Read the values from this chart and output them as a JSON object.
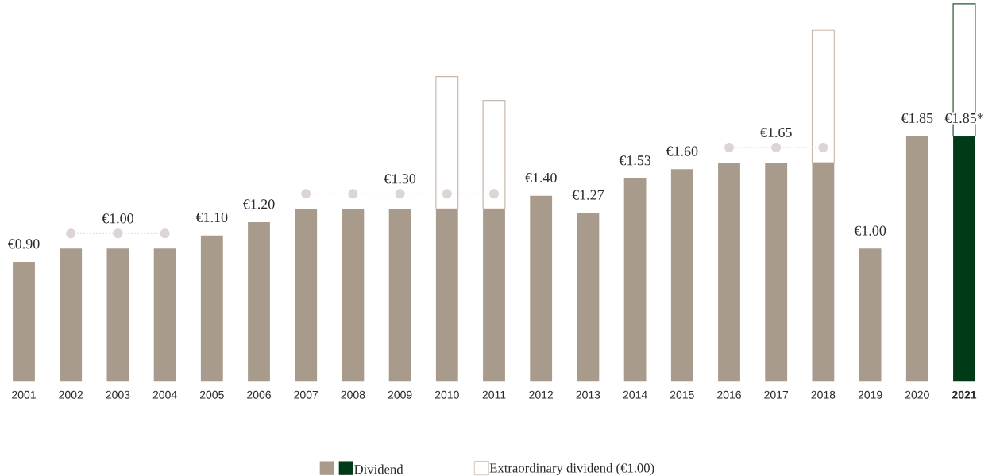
{
  "chart_data": {
    "type": "bar",
    "stacked": true,
    "categories": [
      "2001",
      "2002",
      "2003",
      "2004",
      "2005",
      "2006",
      "2007",
      "2008",
      "2009",
      "2010",
      "2011",
      "2012",
      "2013",
      "2014",
      "2015",
      "2016",
      "2017",
      "2018",
      "2019",
      "2020",
      "**2021**"
    ],
    "series": [
      {
        "name": "Dividend",
        "color": "#a89b8c",
        "colors": [
          "#a89b8c",
          "#a89b8c",
          "#a89b8c",
          "#a89b8c",
          "#a89b8c",
          "#a89b8c",
          "#a89b8c",
          "#a89b8c",
          "#a89b8c",
          "#a89b8c",
          "#a89b8c",
          "#a89b8c",
          "#a89b8c",
          "#a89b8c",
          "#a89b8c",
          "#a89b8c",
          "#a89b8c",
          "#a89b8c",
          "#a89b8c",
          "#a89b8c",
          "#003a17"
        ],
        "values": [
          0.9,
          1.0,
          1.0,
          1.0,
          1.1,
          1.2,
          1.3,
          1.3,
          1.3,
          1.3,
          1.3,
          1.4,
          1.27,
          1.53,
          1.6,
          1.65,
          1.65,
          1.65,
          1.0,
          1.85,
          1.85
        ],
        "value_labels": [
          "€0.90",
          null,
          "€1.00",
          null,
          "€1.10",
          "€1.20",
          null,
          null,
          "€1.30",
          null,
          null,
          "€1.40",
          "€1.27",
          "€1.53",
          "€1.60",
          null,
          "€1.65",
          null,
          "€1.00",
          "€1.85",
          "€1.85*"
        ]
      },
      {
        "name": "Extraordinary dividend (€1.00)",
        "color": "#c9b9aa",
        "colors": [
          null,
          null,
          null,
          null,
          null,
          null,
          null,
          null,
          null,
          "#c9b9aa",
          "#c9b9aa",
          null,
          null,
          null,
          null,
          null,
          null,
          "#c9b9aa",
          null,
          null,
          "#1f5a2e"
        ],
        "values": [
          null,
          null,
          null,
          null,
          null,
          null,
          null,
          null,
          null,
          1.0,
          0.82,
          null,
          null,
          null,
          null,
          null,
          null,
          1.0,
          null,
          null,
          1.0
        ]
      }
    ],
    "tick_labels": "x",
    "legend": "bottom"
  }
}
